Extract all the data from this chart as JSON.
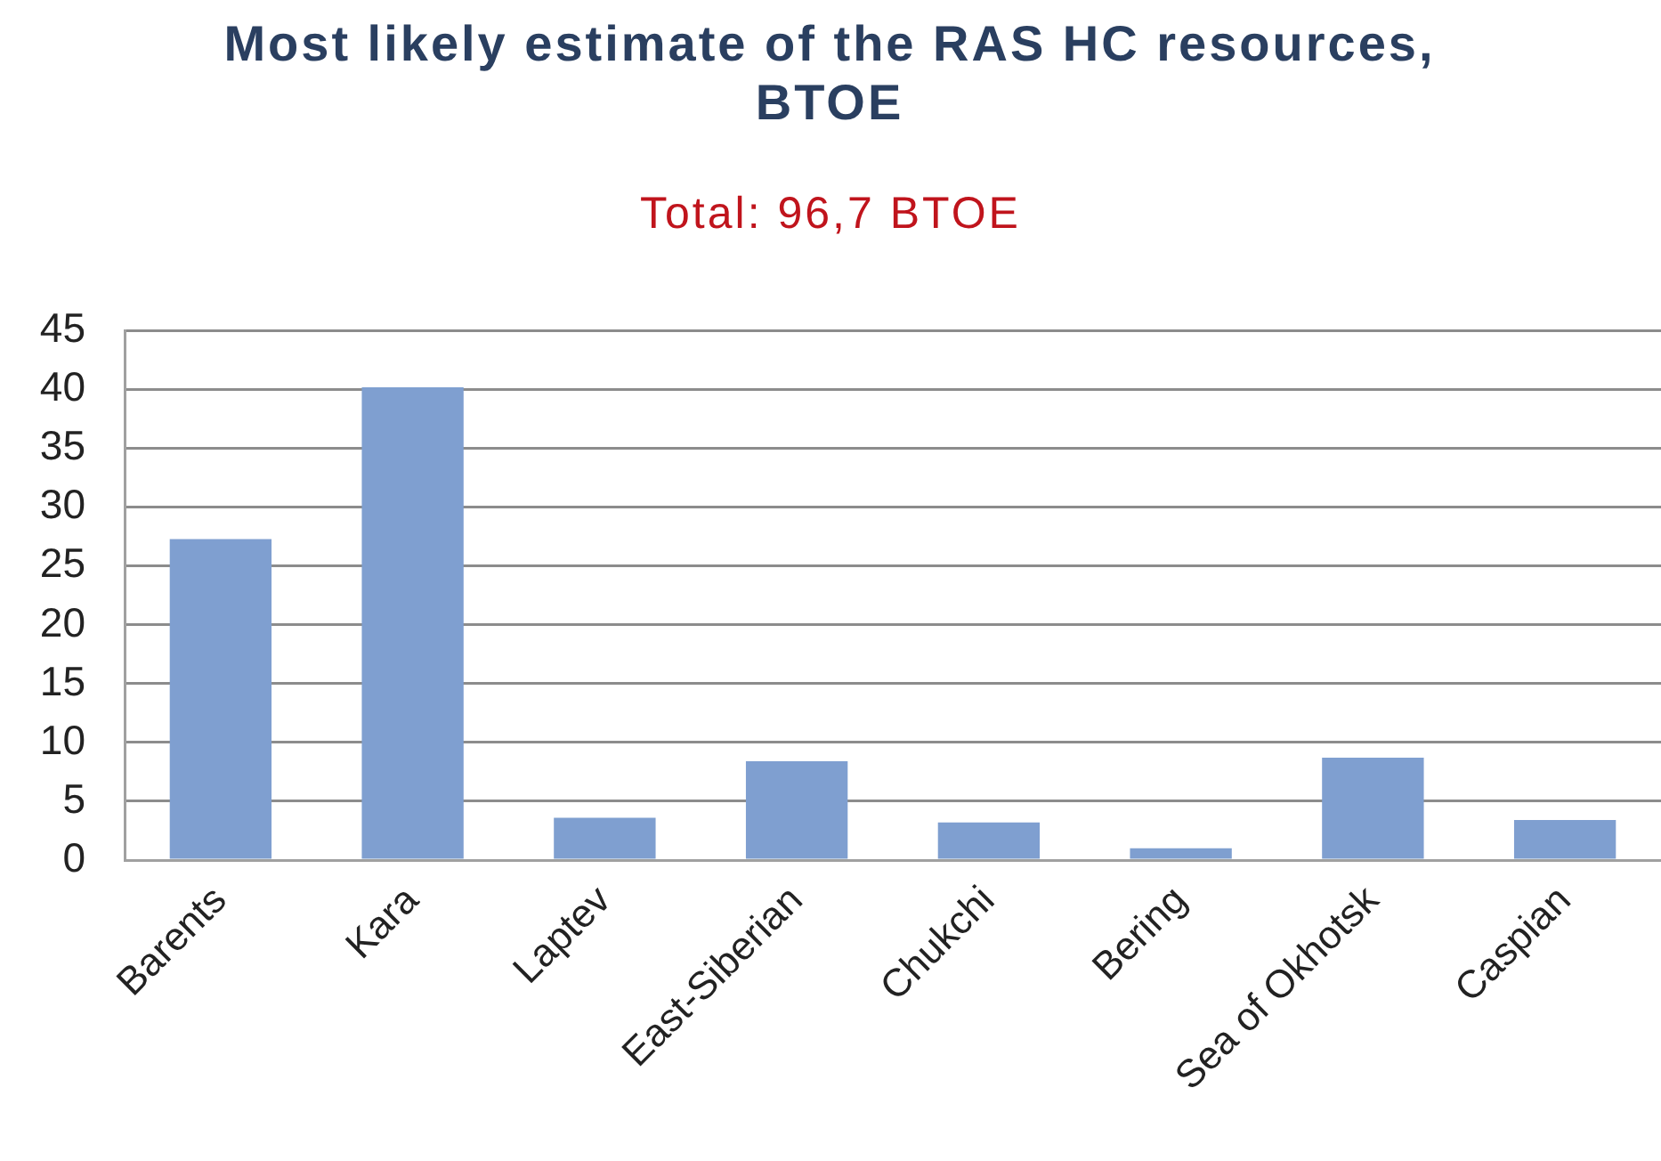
{
  "chart_data": {
    "type": "bar",
    "title": "Most likely estimate of the RAS HC resources, BTOE",
    "subtitle": "Total: 96,7 BTOE",
    "categories": [
      "Barents",
      "Kara",
      "Laptev",
      "East-Siberian",
      "Chukchi",
      "Bering",
      "Sea of Okhotsk",
      "Caspian"
    ],
    "values": [
      27.3,
      40.2,
      3.6,
      8.4,
      3.2,
      1.0,
      8.7,
      3.4
    ],
    "color": "#7f9fd0",
    "ylim": [
      0,
      45
    ],
    "yticks": [
      0,
      5,
      10,
      15,
      20,
      25,
      30,
      35,
      40,
      45
    ],
    "grid": "y"
  }
}
